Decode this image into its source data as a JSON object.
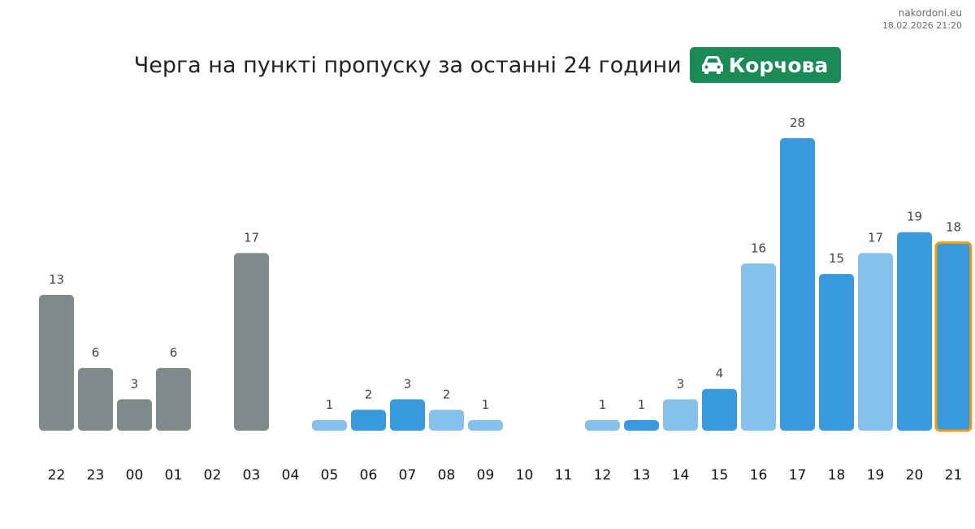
{
  "site": "nakordoni.eu",
  "timestamp": "18.02.2026 21:20",
  "header": {
    "title": "Черга на пункті пропуску за останні 24 години",
    "checkpoint": "Корчова",
    "checkpoint_icon": "car-icon"
  },
  "colors": {
    "badge": "#1a8a56",
    "past_bar": "#7f8b8b",
    "recent_dark": "#3899dc",
    "recent_light": "#85c1ea",
    "current_outline": "#f39c12"
  },
  "chart_data": {
    "type": "bar",
    "title": "Черга на пункті пропуску за останні 24 години",
    "xlabel": "",
    "ylabel": "",
    "categories": [
      "22",
      "23",
      "00",
      "01",
      "02",
      "03",
      "04",
      "05",
      "06",
      "07",
      "08",
      "09",
      "10",
      "11",
      "12",
      "13",
      "14",
      "15",
      "16",
      "17",
      "18",
      "19",
      "20",
      "21"
    ],
    "values": [
      13,
      6,
      3,
      6,
      0,
      17,
      0,
      1,
      2,
      3,
      2,
      1,
      0,
      0,
      1,
      1,
      3,
      4,
      16,
      28,
      15,
      17,
      19,
      18
    ],
    "bar_colors": [
      "gray",
      "gray",
      "gray",
      "gray",
      "gray",
      "gray",
      "gray",
      "light",
      "dark",
      "dark",
      "light",
      "light",
      "light",
      "light",
      "light",
      "dark",
      "light",
      "dark",
      "light",
      "dark",
      "dark",
      "light",
      "dark",
      "dark"
    ],
    "highlighted_category": "21",
    "ylim": [
      0,
      28
    ],
    "grid": false,
    "legend": "none"
  }
}
